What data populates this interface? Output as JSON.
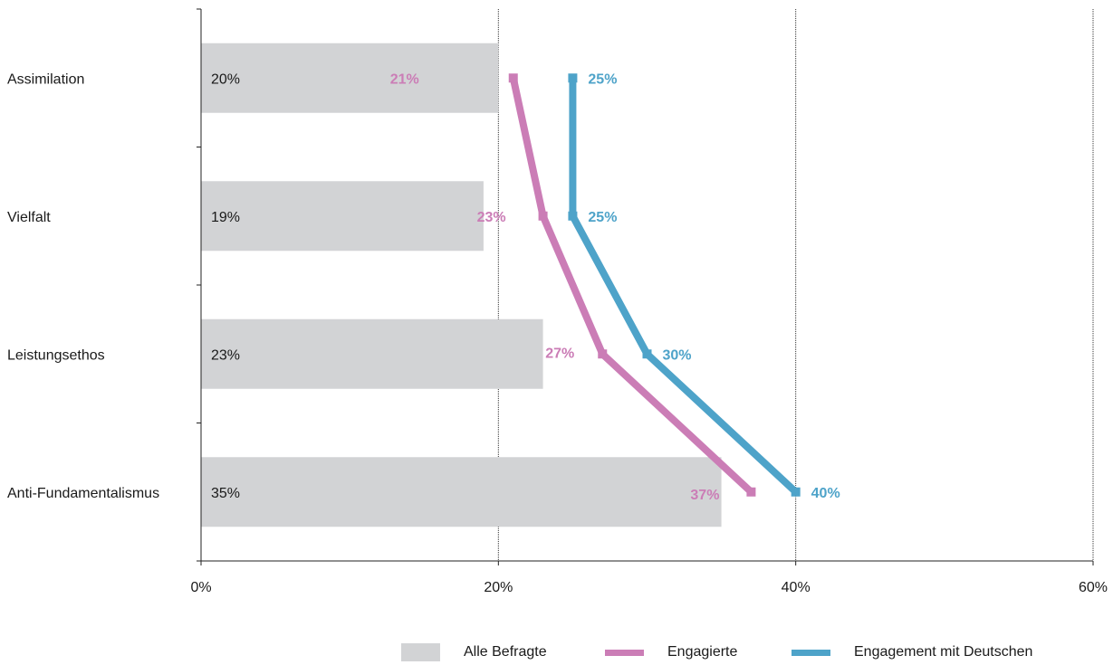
{
  "chart_data": {
    "type": "bar",
    "orientation": "horizontal",
    "categories": [
      "Assimilation",
      "Vielfalt",
      "Leistungsethos",
      "Anti-Fundamentalismus"
    ],
    "series": [
      {
        "name": "Alle Befragte",
        "kind": "bar",
        "color": "#d2d3d5",
        "values": [
          20,
          19,
          23,
          35
        ],
        "labels": [
          "20%",
          "19%",
          "23%",
          "35%"
        ]
      },
      {
        "name": "Engagierte",
        "kind": "line",
        "color": "#cb7db6",
        "values": [
          21,
          23,
          27,
          37
        ],
        "labels": [
          "21%",
          "23%",
          "27%",
          "37%"
        ]
      },
      {
        "name": "Engagement mit Deutschen",
        "kind": "line",
        "color": "#4ea3c9",
        "values": [
          25,
          25,
          30,
          40
        ],
        "labels": [
          "25%",
          "25%",
          "30%",
          "40%"
        ]
      }
    ],
    "xlim": [
      0,
      60
    ],
    "xticks": [
      0,
      20,
      40,
      60
    ],
    "xtick_labels": [
      "0%",
      "20%",
      "40%",
      "60%"
    ],
    "grid": true,
    "legend_position": "bottom"
  }
}
